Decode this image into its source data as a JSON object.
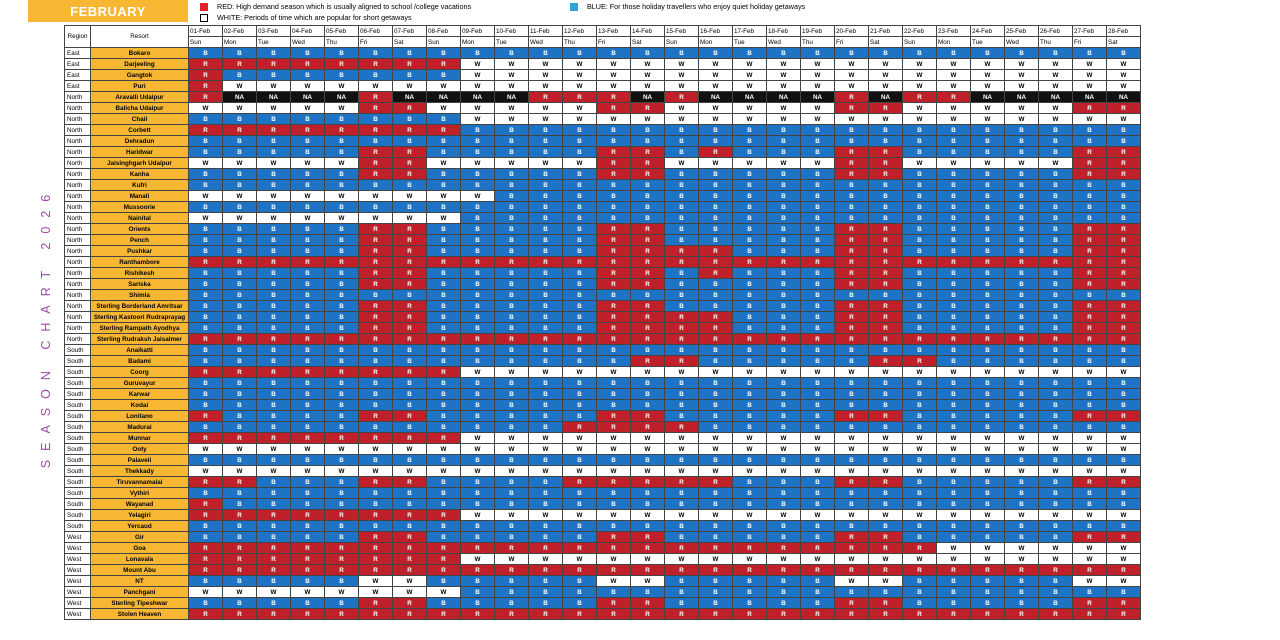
{
  "title": "FEBRUARY",
  "side_title": "SEASON CHART 2026",
  "legend": {
    "red": "RED: High demand season which is usually aligned to school /college vacations",
    "white": "WHITE: Periods of time which are popular for short getaways",
    "blue": "BLUE: For those holiday travellers who enjoy quiet holiday getaways"
  },
  "colors": {
    "red": "#c0202a",
    "blue": "#1f73c4",
    "white": "#ffffff",
    "na": "#111111",
    "accent": "#f7b733",
    "title_purple": "#a24aa8"
  },
  "headers": {
    "region": "Region",
    "resort": "Resort"
  },
  "dates": [
    "01-Feb",
    "02-Feb",
    "03-Feb",
    "04-Feb",
    "05-Feb",
    "06-Feb",
    "07-Feb",
    "08-Feb",
    "09-Feb",
    "10-Feb",
    "11-Feb",
    "12-Feb",
    "13-Feb",
    "14-Feb",
    "15-Feb",
    "16-Feb",
    "17-Feb",
    "18-Feb",
    "19-Feb",
    "20-Feb",
    "21-Feb",
    "22-Feb",
    "23-Feb",
    "24-Feb",
    "25-Feb",
    "26-Feb",
    "27-Feb",
    "28-Feb"
  ],
  "days": [
    "Sun",
    "Mon",
    "Tue",
    "Wed",
    "Thu",
    "Fri",
    "Sat",
    "Sun",
    "Mon",
    "Tue",
    "Wed",
    "Thu",
    "Fri",
    "Sat",
    "Sun",
    "Mon",
    "Tue",
    "Wed",
    "Thu",
    "Fri",
    "Sat",
    "Sun",
    "Mon",
    "Tue",
    "Wed",
    "Thu",
    "Fri",
    "Sat"
  ],
  "rows": [
    {
      "region": "East",
      "resort": "Bokaro",
      "cells": "BBBBBBBBBBBBBBBBBBBBBBBBBBBB"
    },
    {
      "region": "East",
      "resort": "Darjeeling",
      "cells": "RRRRRRRRWWWWWWWWWWWWWWWWWWWW"
    },
    {
      "region": "East",
      "resort": "Gangtok",
      "cells": "RBBBBBBBWWWWWWWWWWWWWWWWWWWW"
    },
    {
      "region": "East",
      "resort": "Puri",
      "cells": "RWWWWWWWWWWWWWWWWWWWWWWWWWWW"
    },
    {
      "region": "North",
      "resort": "Aravalli Udaipur",
      "cells": "RNNNNRNNNNRRRNRNNNNRNRRNNNNN"
    },
    {
      "region": "North",
      "resort": "Balicha Udaipur",
      "cells": "WWWWWRRWWWWWRRWWWWWRRWWWWWRR"
    },
    {
      "region": "North",
      "resort": "Chail",
      "cells": "BBBBBBBBWWWWWWWWWWWWWWWWWWWW"
    },
    {
      "region": "North",
      "resort": "Corbett",
      "cells": "RRRRRRRRBBBBBBBBBBBBBBBBBBBB"
    },
    {
      "region": "North",
      "resort": "Dehradun",
      "cells": "BBBBBBBBBBBBBBBBBBBBBBBBBBBB"
    },
    {
      "region": "North",
      "resort": "Haridwar",
      "cells": "BBBBBRRBBBBBRRBRBBBRRBBBBBRR"
    },
    {
      "region": "North",
      "resort": "Jaisinghgarh Udaipur",
      "cells": "WWWWWRRWWWWWRRWWWWWRRWWWWWRR"
    },
    {
      "region": "North",
      "resort": "Kanha",
      "cells": "BBBBBRRBBBBBRRBBBBBRRBBBBBRR"
    },
    {
      "region": "North",
      "resort": "Kufri",
      "cells": "BBBBBBBBBBBBBBBBBBBBBBBBBBBB"
    },
    {
      "region": "North",
      "resort": "Manali",
      "cells": "WWWWWWWWWBBBBBBBBBBBBBBBBBBB"
    },
    {
      "region": "North",
      "resort": "Mussoorie",
      "cells": "BBBBBBBBBBBBBBBBBBBBBBBBBBBB"
    },
    {
      "region": "North",
      "resort": "Nainital",
      "cells": "WWWWWWWWBBBBBBBBBBBBBBBBBBBB"
    },
    {
      "region": "North",
      "resort": "Orients",
      "cells": "BBBBBRRBBBBBRRBBBBBRRBBBBBRR"
    },
    {
      "region": "North",
      "resort": "Pench",
      "cells": "BBBBBRRBBBBBRRBBBBBRRBBBBBRR"
    },
    {
      "region": "North",
      "resort": "Pushkar",
      "cells": "BBBBBRRBBBBBRRRRBBBRRBBBBBRR"
    },
    {
      "region": "North",
      "resort": "Ranthambore",
      "cells": "RRRRRRRRRRRRRRRRRRRRRRRRRRRR"
    },
    {
      "region": "North",
      "resort": "Rishikesh",
      "cells": "BBBBBRRBBBBBRRBRBBBRRBBBBBRR"
    },
    {
      "region": "North",
      "resort": "Sariska",
      "cells": "BBBBBRRBBBBBRRBBBBBRRBBBBBRR"
    },
    {
      "region": "North",
      "resort": "Shimla",
      "cells": "BBBBBBBBBBBBBBBBBBBBBBBBBBBB"
    },
    {
      "region": "North",
      "resort": "Sterling Borderland Amritsar",
      "cells": "BBBBBRRBBBBBRRBBBBBRRBBBBBRR"
    },
    {
      "region": "North",
      "resort": "Sterling Kastoori Rudraprayag",
      "cells": "BBBBBRRBBBBBRRRRBBBRRBBBBBRR"
    },
    {
      "region": "North",
      "resort": "Sterling Rampath Ayodhya",
      "cells": "BBBBBRRBBBBBRRRRBBBRRBBBBBRR"
    },
    {
      "region": "North",
      "resort": "Sterling Rudraksh Jaisalmer",
      "cells": "RRRRRRRRRRRRRRRRRRRRRRRRRRRR"
    },
    {
      "region": "South",
      "resort": "Anaikatti",
      "cells": "BBBBBBBBBBBBBBBBBBBBBBBBBBBB"
    },
    {
      "region": "South",
      "resort": "Badami",
      "cells": "BBBBBBBBBBBBBRRBBBBBRRBBBBBB"
    },
    {
      "region": "South",
      "resort": "Coorg",
      "cells": "RRRRRRRRWWWWWWWWWWWWWWWWWWWW"
    },
    {
      "region": "South",
      "resort": "Guruvayur",
      "cells": "BBBBBBBBBBBBBBBBBBBBBBBBBBBB"
    },
    {
      "region": "South",
      "resort": "Karwar",
      "cells": "BBBBBBBBBBBBBBBBBBBBBBBBBBBB"
    },
    {
      "region": "South",
      "resort": "Kodai",
      "cells": "BBBBBBBBBBBBBBBBBBBBBBBBBBBB"
    },
    {
      "region": "South",
      "resort": "Lonitano",
      "cells": "RBBBBRRBBBBBRRBBBBBRRBBBBBRR"
    },
    {
      "region": "South",
      "resort": "Madurai",
      "cells": "BBBBBBBBBBBRRRRBBBBBBBBBBBBB"
    },
    {
      "region": "South",
      "resort": "Munnar",
      "cells": "RRRRRRRRWWWWWWWWWWWWWWWWWWWW"
    },
    {
      "region": "South",
      "resort": "Ooty",
      "cells": "WWWWWWWWWWWWWWWWWWWWWWWWWWWW"
    },
    {
      "region": "South",
      "resort": "Palaveli",
      "cells": "BBBBBBBBBBBBBBBBBBBBBBBBBBBB"
    },
    {
      "region": "South",
      "resort": "Thekkady",
      "cells": "WWWWWWWWWWWWWWWWWWWWWWWWWWWW"
    },
    {
      "region": "South",
      "resort": "Tiruvannamalai",
      "cells": "RRBBBRRBBBBRRRRRBBBRRBBBBBRR"
    },
    {
      "region": "South",
      "resort": "Vythiri",
      "cells": "BBBBBBBBBBBBBBBBBBBBBBBBBBBB"
    },
    {
      "region": "South",
      "resort": "Wayanad",
      "cells": "RBBBBBBBBBBBBBBBBBBBBBBBBBBB"
    },
    {
      "region": "South",
      "resort": "Yelagiri",
      "cells": "RRRRRRRRWWWWWWWWWWWWWWWWWWWW"
    },
    {
      "region": "South",
      "resort": "Yercaud",
      "cells": "BBBBBBBBBBBBBBBBBBBBBBBBBBBB"
    },
    {
      "region": "West",
      "resort": "Gir",
      "cells": "BBBBBRRBBBBBRRBBBBBRRBBBBBRR"
    },
    {
      "region": "West",
      "resort": "Goa",
      "cells": "RRRRRRRRRRRRRRRRRRRRRRWWWWWW"
    },
    {
      "region": "West",
      "resort": "Lonavala",
      "cells": "RRRRRRRRWWWWWWWWWWWWWWWWWWWW"
    },
    {
      "region": "West",
      "resort": "Mount Abu",
      "cells": "RRRRRRRRRRRRRRRRRRRRRRRRRRRR"
    },
    {
      "region": "West",
      "resort": "NT",
      "cells": "BBBBBWWBBBBBWWBBBBBWWBBBBBWW"
    },
    {
      "region": "West",
      "resort": "Panchgani",
      "cells": "WWWWWWWWBBBBBBBBBBBBBBBBBBBB"
    },
    {
      "region": "West",
      "resort": "Sterling Tipeshwar",
      "cells": "BBBBBRRBBBBBRRBBBBBRRBBBBBRR"
    },
    {
      "region": "West",
      "resort": "Stolen Heaven",
      "cells": "RRRRRRRRRRRRRRRRRRRRRRRRRRRR"
    }
  ]
}
